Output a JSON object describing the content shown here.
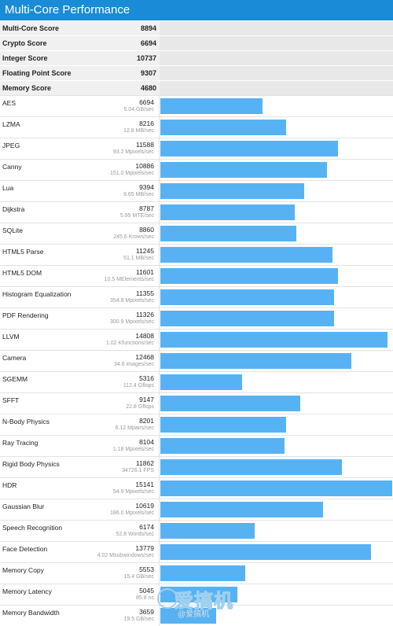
{
  "header": {
    "title": "Multi-Core Performance"
  },
  "summary": [
    {
      "label": "Multi-Core Score",
      "value": "8894"
    },
    {
      "label": "Crypto Score",
      "value": "6694"
    },
    {
      "label": "Integer Score",
      "value": "10737"
    },
    {
      "label": "Floating Point Score",
      "value": "9307"
    },
    {
      "label": "Memory Score",
      "value": "4680"
    }
  ],
  "colors": {
    "header": "#1a8bd6",
    "bar": "#57b2f3"
  },
  "bar_max": 15141,
  "tests": [
    {
      "name": "AES",
      "score": "6694",
      "detail": "5.04 GB/sec"
    },
    {
      "name": "LZMA",
      "score": "8216",
      "detail": "12.8 MB/sec"
    },
    {
      "name": "JPEG",
      "score": "11588",
      "detail": "93.2 Mpixels/sec"
    },
    {
      "name": "Canny",
      "score": "10886",
      "detail": "151.0 Mpixels/sec"
    },
    {
      "name": "Lua",
      "score": "9394",
      "detail": "9.65 MB/sec"
    },
    {
      "name": "Dijkstra",
      "score": "8787",
      "detail": "5.95 MTE/sec"
    },
    {
      "name": "SQLite",
      "score": "8860",
      "detail": "245.6 Krows/sec"
    },
    {
      "name": "HTML5 Parse",
      "score": "11245",
      "detail": "51.1 MB/sec"
    },
    {
      "name": "HTML5 DOM",
      "score": "11601",
      "detail": "10.5 MElements/sec"
    },
    {
      "name": "Histogram Equalization",
      "score": "11355",
      "detail": "354.8 Mpixels/sec"
    },
    {
      "name": "PDF Rendering",
      "score": "11326",
      "detail": "300.9 Mpixels/sec"
    },
    {
      "name": "LLVM",
      "score": "14808",
      "detail": "1.02 Kfunctions/sec"
    },
    {
      "name": "Camera",
      "score": "12468",
      "detail": "34.6 images/sec"
    },
    {
      "name": "SGEMM",
      "score": "5316",
      "detail": "112.4 Gflops"
    },
    {
      "name": "SFFT",
      "score": "9147",
      "detail": "22.8 Gflops"
    },
    {
      "name": "N-Body Physics",
      "score": "8201",
      "detail": "6.12 Mpairs/sec"
    },
    {
      "name": "Ray Tracing",
      "score": "8104",
      "detail": "1.18 Mpixels/sec"
    },
    {
      "name": "Rigid Body Physics",
      "score": "11862",
      "detail": "34726.1 FPS"
    },
    {
      "name": "HDR",
      "score": "15141",
      "detail": "54.9 Mpixels/sec"
    },
    {
      "name": "Gaussian Blur",
      "score": "10619",
      "detail": "186.0 Mpixels/sec"
    },
    {
      "name": "Speech Recognition",
      "score": "6174",
      "detail": "52.8 Words/sec"
    },
    {
      "name": "Face Detection",
      "score": "13779",
      "detail": "4.02 Msubwindows/sec"
    },
    {
      "name": "Memory Copy",
      "score": "5553",
      "detail": "15.4 GB/sec"
    },
    {
      "name": "Memory Latency",
      "score": "5045",
      "detail": "85.8 ns"
    },
    {
      "name": "Memory Bandwidth",
      "score": "3659",
      "detail": "19.5 GB/sec"
    }
  ],
  "watermark": {
    "big": "爱搞机",
    "small": "@爱搞机"
  }
}
